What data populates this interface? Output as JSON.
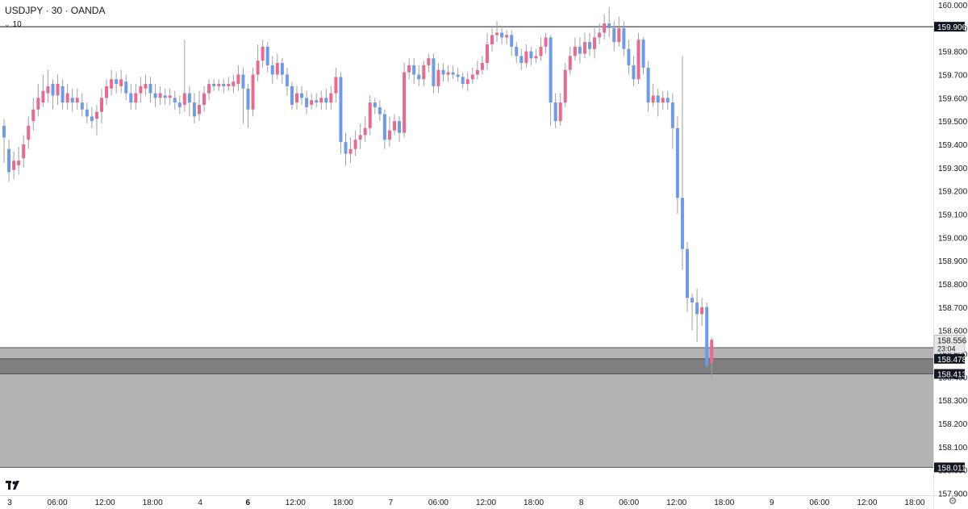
{
  "header": {
    "symbol_line": "USDJPY · 30 · OANDA",
    "indicator_value": "10"
  },
  "icons": {
    "collapse": "chevron-down-icon",
    "logo": "tradingview-logo-icon",
    "settings": "gear-icon"
  },
  "colors": {
    "up": "#ea6a8f",
    "down": "#6c9bea",
    "zone": "#b3b3b3",
    "zone_dark": "#7f7f7f",
    "line": "#131722"
  },
  "chart_data": {
    "type": "candlestick",
    "symbol": "USDJPY",
    "interval": "30",
    "source": "OANDA",
    "ylim": [
      157.9,
      160.0
    ],
    "y_ticks": [
      "160.000",
      "159.900",
      "159.800",
      "159.700",
      "159.600",
      "159.500",
      "159.400",
      "159.300",
      "159.200",
      "159.100",
      "159.000",
      "158.900",
      "158.800",
      "158.700",
      "158.600",
      "158.500",
      "158.400",
      "158.300",
      "158.200",
      "158.100",
      "158.000",
      "157.900"
    ],
    "x_ticks": [
      {
        "label": "3",
        "bold": false
      },
      {
        "label": "06:00",
        "bold": false
      },
      {
        "label": "12:00",
        "bold": false
      },
      {
        "label": "18:00",
        "bold": false
      },
      {
        "label": "4",
        "bold": false
      },
      {
        "label": "6",
        "bold": true
      },
      {
        "label": "12:00",
        "bold": false
      },
      {
        "label": "18:00",
        "bold": false
      },
      {
        "label": "7",
        "bold": false
      },
      {
        "label": "06:00",
        "bold": false
      },
      {
        "label": "12:00",
        "bold": false
      },
      {
        "label": "18:00",
        "bold": false
      },
      {
        "label": "8",
        "bold": false
      },
      {
        "label": "06:00",
        "bold": false
      },
      {
        "label": "12:00",
        "bold": false
      },
      {
        "label": "18:00",
        "bold": false
      },
      {
        "label": "9",
        "bold": false
      },
      {
        "label": "06:00",
        "bold": false
      },
      {
        "label": "12:00",
        "bold": false
      },
      {
        "label": "18:00",
        "bold": false
      }
    ],
    "horizontal_line": {
      "value": 159.906,
      "label": "159.906"
    },
    "zones": [
      {
        "from": 158.011,
        "to": 158.526,
        "shade": "light"
      },
      {
        "from": 158.413,
        "to": 158.478,
        "shade": "dark"
      }
    ],
    "price_labels": [
      {
        "value": 158.556,
        "text": "158.556",
        "sub": "23:04",
        "style": "current"
      },
      {
        "value": 158.478,
        "text": "158.478",
        "style": "dark"
      },
      {
        "value": 158.413,
        "text": "158.413",
        "style": "dark"
      },
      {
        "value": 158.011,
        "text": "158.011",
        "style": "dark"
      }
    ],
    "candles": [
      [
        159.48,
        159.43,
        159.51,
        159.32
      ],
      [
        159.38,
        159.28,
        159.42,
        159.24
      ],
      [
        159.29,
        159.33,
        159.37,
        159.25
      ],
      [
        159.31,
        159.33,
        159.39,
        159.27
      ],
      [
        159.34,
        159.4,
        159.44,
        159.3
      ],
      [
        159.42,
        159.48,
        159.52,
        159.38
      ],
      [
        159.5,
        159.55,
        159.6,
        159.46
      ],
      [
        159.55,
        159.6,
        159.66,
        159.52
      ],
      [
        159.58,
        159.63,
        159.7,
        159.56
      ],
      [
        159.62,
        159.65,
        159.72,
        159.58
      ],
      [
        159.66,
        159.61,
        159.68,
        159.55
      ],
      [
        159.61,
        159.66,
        159.7,
        159.57
      ],
      [
        159.65,
        159.58,
        159.68,
        159.55
      ],
      [
        159.58,
        159.62,
        159.66,
        159.55
      ],
      [
        159.6,
        159.58,
        159.64,
        159.54
      ],
      [
        159.58,
        159.6,
        159.64,
        159.55
      ],
      [
        159.58,
        159.55,
        159.62,
        159.52
      ],
      [
        159.55,
        159.52,
        159.58,
        159.49
      ],
      [
        159.52,
        159.5,
        159.56,
        159.47
      ],
      [
        159.51,
        159.54,
        159.57,
        159.44
      ],
      [
        159.54,
        159.6,
        159.64,
        159.49
      ],
      [
        159.6,
        159.65,
        159.68,
        159.57
      ],
      [
        159.64,
        159.68,
        159.72,
        159.61
      ],
      [
        159.68,
        159.66,
        159.71,
        159.62
      ],
      [
        159.65,
        159.68,
        159.72,
        159.62
      ],
      [
        159.67,
        159.62,
        159.7,
        159.59
      ],
      [
        159.62,
        159.58,
        159.66,
        159.55
      ],
      [
        159.58,
        159.62,
        159.66,
        159.55
      ],
      [
        159.62,
        159.65,
        159.69,
        159.58
      ],
      [
        159.64,
        159.66,
        159.7,
        159.61
      ],
      [
        159.66,
        159.62,
        159.69,
        159.58
      ],
      [
        159.62,
        159.6,
        159.66,
        159.56
      ],
      [
        159.6,
        159.62,
        159.65,
        159.57
      ],
      [
        159.61,
        159.6,
        159.64,
        159.57
      ],
      [
        159.6,
        159.61,
        159.64,
        159.57
      ],
      [
        159.6,
        159.58,
        159.63,
        159.55
      ],
      [
        159.58,
        159.56,
        159.61,
        159.53
      ],
      [
        159.57,
        159.62,
        159.85,
        159.54
      ],
      [
        159.62,
        159.58,
        159.65,
        159.52
      ],
      [
        159.58,
        159.52,
        159.62,
        159.49
      ],
      [
        159.53,
        159.57,
        159.63,
        159.5
      ],
      [
        159.57,
        159.62,
        159.65,
        159.54
      ],
      [
        159.62,
        159.66,
        159.68,
        159.59
      ],
      [
        159.66,
        159.65,
        159.68,
        159.63
      ],
      [
        159.65,
        159.66,
        159.68,
        159.63
      ],
      [
        159.66,
        159.65,
        159.68,
        159.62
      ],
      [
        159.65,
        159.66,
        159.69,
        159.63
      ],
      [
        159.65,
        159.67,
        159.7,
        159.62
      ],
      [
        159.66,
        159.7,
        159.74,
        159.63
      ],
      [
        159.7,
        159.64,
        159.73,
        159.49
      ],
      [
        159.64,
        159.55,
        159.66,
        159.47
      ],
      [
        159.55,
        159.7,
        159.73,
        159.52
      ],
      [
        159.7,
        159.76,
        159.83,
        159.67
      ],
      [
        159.76,
        159.82,
        159.85,
        159.73
      ],
      [
        159.82,
        159.74,
        159.84,
        159.71
      ],
      [
        159.74,
        159.7,
        159.78,
        159.66
      ],
      [
        159.7,
        159.75,
        159.79,
        159.68
      ],
      [
        159.75,
        159.7,
        159.77,
        159.66
      ],
      [
        159.7,
        159.65,
        159.73,
        159.61
      ],
      [
        159.65,
        159.57,
        159.67,
        159.55
      ],
      [
        159.58,
        159.62,
        159.65,
        159.55
      ],
      [
        159.62,
        159.6,
        159.65,
        159.57
      ],
      [
        159.6,
        159.56,
        159.63,
        159.53
      ],
      [
        159.57,
        159.59,
        159.62,
        159.55
      ],
      [
        159.59,
        159.58,
        159.62,
        159.56
      ],
      [
        159.58,
        159.6,
        159.63,
        159.55
      ],
      [
        159.6,
        159.58,
        159.64,
        159.55
      ],
      [
        159.58,
        159.62,
        159.65,
        159.55
      ],
      [
        159.62,
        159.69,
        159.73,
        159.58
      ],
      [
        159.69,
        159.41,
        159.71,
        159.36
      ],
      [
        159.41,
        159.36,
        159.45,
        159.31
      ],
      [
        159.36,
        159.38,
        159.43,
        159.32
      ],
      [
        159.38,
        159.42,
        159.46,
        159.35
      ],
      [
        159.42,
        159.44,
        159.49,
        159.38
      ],
      [
        159.44,
        159.47,
        159.52,
        159.41
      ],
      [
        159.47,
        159.58,
        159.61,
        159.44
      ],
      [
        159.58,
        159.56,
        159.6,
        159.53
      ],
      [
        159.56,
        159.53,
        159.59,
        159.5
      ],
      [
        159.53,
        159.42,
        159.55,
        159.38
      ],
      [
        159.42,
        159.46,
        159.52,
        159.39
      ],
      [
        159.46,
        159.5,
        159.53,
        159.44
      ],
      [
        159.5,
        159.45,
        159.52,
        159.41
      ],
      [
        159.45,
        159.71,
        159.75,
        159.43
      ],
      [
        159.71,
        159.74,
        159.77,
        159.68
      ],
      [
        159.74,
        159.7,
        159.77,
        159.66
      ],
      [
        159.7,
        159.68,
        159.74,
        159.65
      ],
      [
        159.68,
        159.74,
        159.76,
        159.65
      ],
      [
        159.74,
        159.77,
        159.79,
        159.71
      ],
      [
        159.77,
        159.65,
        159.79,
        159.62
      ],
      [
        159.65,
        159.72,
        159.75,
        159.62
      ],
      [
        159.72,
        159.7,
        159.75,
        159.67
      ],
      [
        159.7,
        159.71,
        159.74,
        159.67
      ],
      [
        159.71,
        159.7,
        159.74,
        159.68
      ],
      [
        159.7,
        159.69,
        159.73,
        159.67
      ],
      [
        159.69,
        159.66,
        159.71,
        159.64
      ],
      [
        159.66,
        159.68,
        159.71,
        159.63
      ],
      [
        159.68,
        159.7,
        159.73,
        159.66
      ],
      [
        159.7,
        159.72,
        159.76,
        159.68
      ],
      [
        159.72,
        159.75,
        159.78,
        159.7
      ],
      [
        159.75,
        159.83,
        159.88,
        159.72
      ],
      [
        159.83,
        159.87,
        159.9,
        159.8
      ],
      [
        159.87,
        159.88,
        159.93,
        159.84
      ],
      [
        159.88,
        159.86,
        159.9,
        159.83
      ],
      [
        159.86,
        159.87,
        159.89,
        159.83
      ],
      [
        159.87,
        159.82,
        159.89,
        159.78
      ],
      [
        159.82,
        159.78,
        159.84,
        159.75
      ],
      [
        159.78,
        159.75,
        159.81,
        159.72
      ],
      [
        159.75,
        159.8,
        159.83,
        159.73
      ],
      [
        159.8,
        159.77,
        159.82,
        159.74
      ],
      [
        159.77,
        159.78,
        159.81,
        159.75
      ],
      [
        159.78,
        159.82,
        159.86,
        159.76
      ],
      [
        159.82,
        159.86,
        159.88,
        159.79
      ],
      [
        159.86,
        159.58,
        159.87,
        159.48
      ],
      [
        159.58,
        159.5,
        159.62,
        159.47
      ],
      [
        159.5,
        159.58,
        159.62,
        159.48
      ],
      [
        159.58,
        159.72,
        159.75,
        159.56
      ],
      [
        159.72,
        159.78,
        159.82,
        159.7
      ],
      [
        159.78,
        159.82,
        159.86,
        159.76
      ],
      [
        159.82,
        159.79,
        159.86,
        159.75
      ],
      [
        159.79,
        159.84,
        159.88,
        159.77
      ],
      [
        159.84,
        159.81,
        159.88,
        159.78
      ],
      [
        159.81,
        159.86,
        159.9,
        159.77
      ],
      [
        159.86,
        159.88,
        159.92,
        159.83
      ],
      [
        159.88,
        159.92,
        159.96,
        159.85
      ],
      [
        159.92,
        159.9,
        159.99,
        159.86
      ],
      [
        159.9,
        159.84,
        159.93,
        159.8
      ],
      [
        159.84,
        159.9,
        159.95,
        159.82
      ],
      [
        159.9,
        159.81,
        159.93,
        159.78
      ],
      [
        159.81,
        159.74,
        159.85,
        159.7
      ],
      [
        159.74,
        159.68,
        159.78,
        159.65
      ],
      [
        159.68,
        159.85,
        159.88,
        159.66
      ],
      [
        159.85,
        159.73,
        159.86,
        159.7
      ],
      [
        159.73,
        159.58,
        159.76,
        159.54
      ],
      [
        159.58,
        159.61,
        159.66,
        159.56
      ],
      [
        159.61,
        159.58,
        159.64,
        159.52
      ],
      [
        159.58,
        159.6,
        159.63,
        159.55
      ],
      [
        159.6,
        159.58,
        159.63,
        159.55
      ],
      [
        159.58,
        159.47,
        159.62,
        159.38
      ],
      [
        159.47,
        159.17,
        159.52,
        159.1
      ],
      [
        159.17,
        158.95,
        159.78,
        158.86
      ],
      [
        158.95,
        158.74,
        158.98,
        158.68
      ],
      [
        158.74,
        158.72,
        158.76,
        158.6
      ],
      [
        158.72,
        158.67,
        158.78,
        158.55
      ],
      [
        158.67,
        158.7,
        158.74,
        158.62
      ],
      [
        158.7,
        158.45,
        158.72,
        158.44
      ],
      [
        158.46,
        158.56,
        158.57,
        158.39
      ]
    ]
  }
}
